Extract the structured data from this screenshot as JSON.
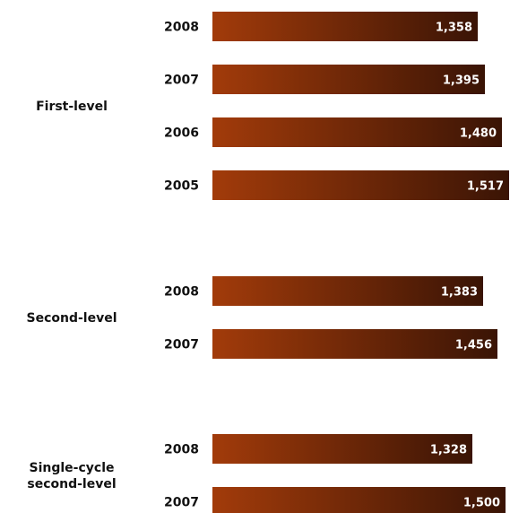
{
  "chart_data": {
    "type": "bar",
    "orientation": "horizontal",
    "title": "",
    "xlabel": "",
    "ylabel": "",
    "grid": false,
    "legend": "none",
    "xlim": [
      0,
      1517
    ],
    "bar_color_start": "#a23b0a",
    "bar_color_end": "#3a1405",
    "groups": [
      {
        "name": "First-level",
        "bars": [
          {
            "category": "2008",
            "value": 1358,
            "label": "1,358"
          },
          {
            "category": "2007",
            "value": 1395,
            "label": "1,395"
          },
          {
            "category": "2006",
            "value": 1480,
            "label": "1,480"
          },
          {
            "category": "2005",
            "value": 1517,
            "label": "1,517"
          }
        ]
      },
      {
        "name": "Second-level",
        "bars": [
          {
            "category": "2008",
            "value": 1383,
            "label": "1,383"
          },
          {
            "category": "2007",
            "value": 1456,
            "label": "1,456"
          }
        ]
      },
      {
        "name": "Single-cycle second-level",
        "name_lines": [
          "Single-cycle",
          "second-level"
        ],
        "bars": [
          {
            "category": "2008",
            "value": 1328,
            "label": "1,328"
          },
          {
            "category": "2007",
            "value": 1500,
            "label": "1,500"
          }
        ]
      }
    ]
  }
}
